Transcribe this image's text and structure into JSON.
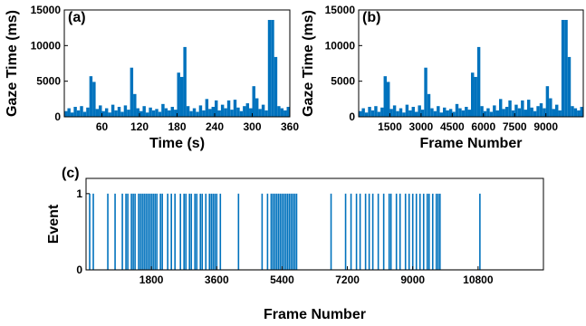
{
  "chart_data": [
    {
      "type": "bar",
      "label": "(a)",
      "xlabel": "Time (s)",
      "ylabel": "Gaze Time (ms)",
      "color": "#0072bd",
      "x": [
        2.5,
        7.5,
        12.5,
        17.5,
        22.5,
        27.5,
        32.5,
        37.5,
        42.5,
        47.5,
        52.5,
        57.5,
        62.5,
        67.5,
        72.5,
        77.5,
        82.5,
        87.5,
        92.5,
        97.5,
        102.5,
        107.5,
        112.5,
        117.5,
        122.5,
        127.5,
        132.5,
        137.5,
        142.5,
        147.5,
        152.5,
        157.5,
        162.5,
        167.5,
        172.5,
        177.5,
        182.5,
        187.5,
        192.5,
        197.5,
        202.5,
        207.5,
        212.5,
        217.5,
        222.5,
        227.5,
        232.5,
        237.5,
        242.5,
        247.5,
        252.5,
        257.5,
        262.5,
        267.5,
        272.5,
        277.5,
        282.5,
        287.5,
        292.5,
        297.5,
        302.5,
        307.5,
        312.5,
        317.5,
        322.5,
        327.5,
        332.5,
        337.5,
        342.5,
        347.5,
        352.5,
        357.5
      ],
      "values": [
        800,
        1200,
        600,
        1400,
        900,
        1500,
        700,
        1300,
        5700,
        4900,
        1100,
        1600,
        800,
        1200,
        600,
        1700,
        900,
        1400,
        700,
        1600,
        1000,
        6900,
        3200,
        1200,
        800,
        1500,
        600,
        1300,
        900,
        1100,
        700,
        1800,
        1200,
        900,
        1400,
        1000,
        6200,
        5600,
        9800,
        1500,
        800,
        1200,
        700,
        1600,
        900,
        2500,
        1100,
        1400,
        2300,
        900,
        1700,
        1200,
        2300,
        1000,
        2400,
        1300,
        800,
        1500,
        1900,
        1200,
        4300,
        2600,
        1100,
        1700,
        900,
        13600,
        13600,
        8400,
        1500,
        1200,
        900,
        1400
      ],
      "xlim": [
        0,
        360
      ],
      "ylim": [
        0,
        15000
      ],
      "xticks": [
        60,
        120,
        180,
        240,
        300,
        360
      ],
      "yticks": [
        0,
        5000,
        10000,
        15000
      ]
    },
    {
      "type": "bar",
      "label": "(b)",
      "xlabel": "Frame Number",
      "ylabel": "Gaze Time (ms)",
      "color": "#0072bd",
      "x": [
        75,
        225,
        375,
        525,
        675,
        825,
        975,
        1125,
        1275,
        1425,
        1575,
        1725,
        1875,
        2025,
        2175,
        2325,
        2475,
        2625,
        2775,
        2925,
        3075,
        3225,
        3375,
        3525,
        3675,
        3825,
        3975,
        4125,
        4275,
        4425,
        4575,
        4725,
        4875,
        5025,
        5175,
        5325,
        5475,
        5625,
        5775,
        5925,
        6075,
        6225,
        6375,
        6525,
        6675,
        6825,
        6975,
        7125,
        7275,
        7425,
        7575,
        7725,
        7875,
        8025,
        8175,
        8325,
        8475,
        8625,
        8775,
        8925,
        9075,
        9225,
        9375,
        9525,
        9675,
        9825,
        9975,
        10125,
        10275,
        10425,
        10575,
        10725
      ],
      "values": [
        800,
        1200,
        600,
        1400,
        900,
        1500,
        700,
        1300,
        5700,
        4900,
        1100,
        1600,
        800,
        1200,
        600,
        1700,
        900,
        1400,
        700,
        1600,
        1000,
        6900,
        3200,
        1200,
        800,
        1500,
        600,
        1300,
        900,
        1100,
        700,
        1800,
        1200,
        900,
        1400,
        1000,
        6200,
        5600,
        9800,
        1500,
        800,
        1200,
        700,
        1600,
        900,
        2500,
        1100,
        1400,
        2300,
        900,
        1700,
        1200,
        2300,
        1000,
        2400,
        1300,
        800,
        1500,
        1900,
        1200,
        4300,
        2600,
        1100,
        1700,
        900,
        13600,
        13600,
        8400,
        1500,
        1200,
        900,
        1400
      ],
      "xlim": [
        0,
        10800
      ],
      "ylim": [
        0,
        15000
      ],
      "xticks": [
        1500,
        3000,
        4500,
        6000,
        7500,
        9000
      ],
      "yticks": [
        0,
        5000,
        10000,
        15000
      ]
    },
    {
      "type": "stem",
      "label": "(c)",
      "xlabel": "Frame Number",
      "ylabel": "Event",
      "color": "#0072bd",
      "x": [
        100,
        200,
        600,
        800,
        1000,
        1100,
        1150,
        1250,
        1300,
        1350,
        1450,
        1500,
        1550,
        1600,
        1650,
        1700,
        1750,
        1800,
        1850,
        1900,
        1950,
        2050,
        2100,
        2250,
        2350,
        2450,
        2600,
        2700,
        2750,
        2850,
        2900,
        3000,
        3050,
        3150,
        3200,
        3300,
        3400,
        3450,
        3500,
        3550,
        3600,
        3700,
        4200,
        4850,
        5000,
        5100,
        5150,
        5200,
        5250,
        5300,
        5350,
        5400,
        5450,
        5500,
        5550,
        5600,
        5650,
        5700,
        5750,
        5800,
        6750,
        7150,
        7300,
        7450,
        7550,
        7700,
        7800,
        7900,
        8050,
        8200,
        8350,
        8400,
        8550,
        8650,
        8800,
        8900,
        9000,
        9100,
        9200,
        9300,
        9400,
        9450,
        9550,
        9650,
        9700,
        9750,
        10850
      ],
      "values": [
        1,
        1,
        1,
        1,
        1,
        1,
        1,
        1,
        1,
        1,
        1,
        1,
        1,
        1,
        1,
        1,
        1,
        1,
        1,
        1,
        1,
        1,
        1,
        1,
        1,
        1,
        1,
        1,
        1,
        1,
        1,
        1,
        1,
        1,
        1,
        1,
        1,
        1,
        1,
        1,
        1,
        1,
        1,
        1,
        1,
        1,
        1,
        1,
        1,
        1,
        1,
        1,
        1,
        1,
        1,
        1,
        1,
        1,
        1,
        1,
        1,
        1,
        1,
        1,
        1,
        1,
        1,
        1,
        1,
        1,
        1,
        1,
        1,
        1,
        1,
        1,
        1,
        1,
        1,
        1,
        1,
        1,
        1,
        1,
        1,
        1,
        1
      ],
      "xlim": [
        0,
        12600
      ],
      "ylim": [
        0,
        1.2
      ],
      "xticks": [
        1800,
        3600,
        5400,
        7200,
        9000,
        10800
      ],
      "yticks": [
        0,
        1
      ]
    }
  ]
}
